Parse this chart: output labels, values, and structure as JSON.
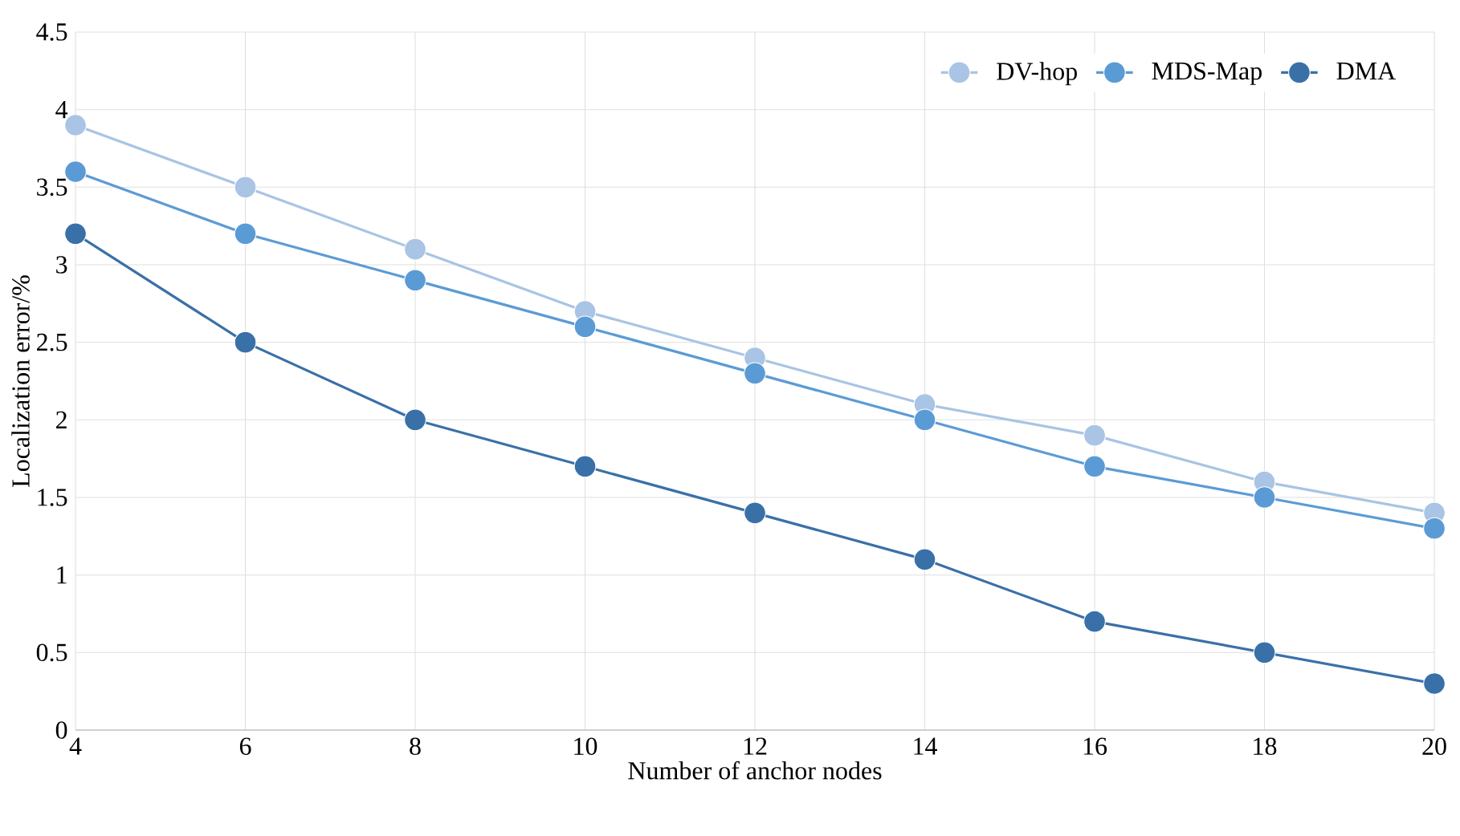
{
  "chart_data": {
    "type": "line",
    "xlabel": "Number of anchor nodes",
    "ylabel": "Localization error/%",
    "x": [
      4,
      6,
      8,
      10,
      12,
      14,
      16,
      18,
      20
    ],
    "series": [
      {
        "name": "DV-hop",
        "color": "#a9c4e4",
        "values": [
          3.9,
          3.5,
          3.1,
          2.7,
          2.4,
          2.1,
          1.9,
          1.6,
          1.4
        ]
      },
      {
        "name": "MDS-Map",
        "color": "#5b9bd5",
        "values": [
          3.6,
          3.2,
          2.9,
          2.6,
          2.3,
          2.0,
          1.7,
          1.5,
          1.3
        ]
      },
      {
        "name": "DMA",
        "color": "#3a70a8",
        "values": [
          3.2,
          2.5,
          2.0,
          1.7,
          1.4,
          1.1,
          0.7,
          0.5,
          0.3
        ]
      }
    ],
    "xlim": [
      4,
      20
    ],
    "xticks": [
      4,
      6,
      8,
      10,
      12,
      14,
      16,
      18,
      20
    ],
    "ylim": [
      0,
      4.5
    ],
    "yticks": [
      0,
      0.5,
      1,
      1.5,
      2,
      2.5,
      3,
      3.5,
      4,
      4.5
    ],
    "grid": true,
    "legend": "top right",
    "marker": "circle",
    "line_style": "solid"
  }
}
